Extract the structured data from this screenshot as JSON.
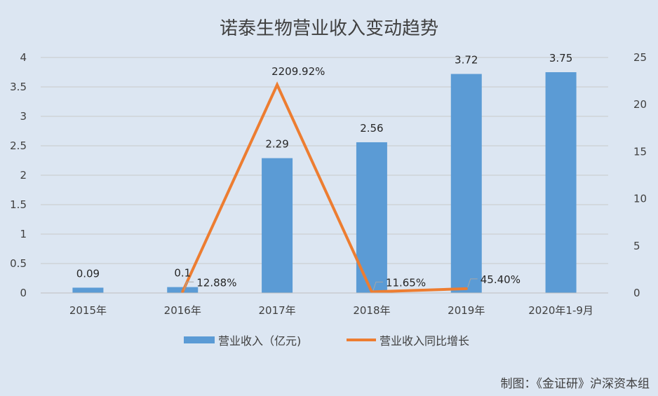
{
  "chart_data": {
    "type": "bar",
    "title": "诺泰生物营业收入变动趋势",
    "categories": [
      "2015年",
      "2016年",
      "2017年",
      "2018年",
      "2019年",
      "2020年1-9月"
    ],
    "series": [
      {
        "name": "营业收入（亿元)",
        "type": "bar",
        "axis": "left",
        "values": [
          0.09,
          0.1,
          2.29,
          2.56,
          3.72,
          3.75
        ],
        "labels": [
          "0.09",
          "0.1",
          "2.29",
          "2.56",
          "3.72",
          "3.75"
        ],
        "color": "#5b9bd5"
      },
      {
        "name": "营业收入同比增长",
        "type": "line",
        "axis": "right",
        "values": [
          null,
          0.1288,
          22.0992,
          0.1165,
          0.454,
          null
        ],
        "labels": [
          "",
          "12.88%",
          "2209.92%",
          "11.65%",
          "45.40%",
          ""
        ],
        "color": "#ed7d31"
      }
    ],
    "y_left": {
      "ylim": [
        0,
        4
      ],
      "ticks": [
        "0",
        "0.5",
        "1",
        "1.5",
        "2",
        "2.5",
        "3",
        "3.5",
        "4"
      ]
    },
    "y_right": {
      "ylim": [
        0,
        25
      ],
      "ticks": [
        "0",
        "5",
        "10",
        "15",
        "20",
        "25"
      ]
    },
    "grid": true,
    "legend_position": "bottom"
  },
  "credit": "制图：《金证研》沪深资本组"
}
